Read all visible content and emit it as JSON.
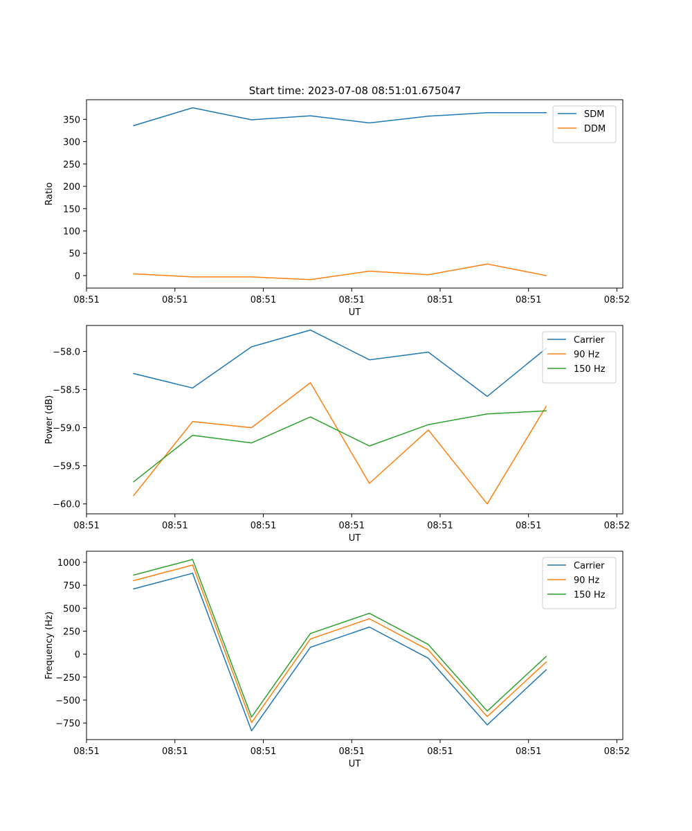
{
  "figure": {
    "title": "Start time: 2023-07-08 08:51:01.675047"
  },
  "chart_data": [
    {
      "type": "line",
      "title": "Start time: 2023-07-08 08:51:01.675047",
      "xlabel": "UT",
      "ylabel": "Ratio",
      "x": [
        1,
        2,
        3,
        4,
        5,
        6,
        7,
        8
      ],
      "xlim": [
        0.2,
        9.3
      ],
      "ylim": [
        -28,
        394
      ],
      "yticks": [
        0,
        50,
        100,
        150,
        200,
        250,
        300,
        350
      ],
      "xticks": [
        0.2,
        1.7,
        3.2,
        4.7,
        6.2,
        7.7,
        9.2
      ],
      "xtick_labels": [
        "08:51",
        "08:51",
        "08:51",
        "08:51",
        "08:51",
        "08:51",
        "08:52"
      ],
      "legend_loc": "upper right",
      "series": [
        {
          "name": "SDM",
          "color": "#1f77b4",
          "values": [
            336,
            376,
            349,
            358,
            342,
            357,
            365,
            365
          ]
        },
        {
          "name": "DDM",
          "color": "#ff7f0e",
          "values": [
            4,
            -3,
            -3,
            -9,
            10,
            2,
            26,
            0
          ]
        }
      ]
    },
    {
      "type": "line",
      "title": "",
      "xlabel": "UT",
      "ylabel": "Power (dB)",
      "x": [
        1,
        2,
        3,
        4,
        5,
        6,
        7,
        8
      ],
      "xlim": [
        0.2,
        9.3
      ],
      "ylim": [
        -60.13,
        -57.66
      ],
      "yticks": [
        -60.0,
        -59.5,
        -59.0,
        -58.5,
        -58.0
      ],
      "ytick_labels": [
        "−60.0",
        "−59.5",
        "−59.0",
        "−58.5",
        "−58.0"
      ],
      "xticks": [
        0.2,
        1.7,
        3.2,
        4.7,
        6.2,
        7.7,
        9.2
      ],
      "xtick_labels": [
        "08:51",
        "08:51",
        "08:51",
        "08:51",
        "08:51",
        "08:51",
        "08:52"
      ],
      "legend_loc": "upper right",
      "series": [
        {
          "name": "Carrier",
          "color": "#1f77b4",
          "values": [
            -58.29,
            -58.48,
            -57.94,
            -57.72,
            -58.11,
            -58.01,
            -58.59,
            -57.96
          ]
        },
        {
          "name": "90 Hz",
          "color": "#ff7f0e",
          "values": [
            -59.89,
            -58.92,
            -59.0,
            -58.41,
            -59.73,
            -59.03,
            -60.0,
            -58.72
          ]
        },
        {
          "name": "150 Hz",
          "color": "#2ca02c",
          "values": [
            -59.71,
            -59.1,
            -59.2,
            -58.86,
            -59.24,
            -58.96,
            -58.82,
            -58.78
          ]
        }
      ]
    },
    {
      "type": "line",
      "title": "",
      "xlabel": "UT",
      "ylabel": "Frequency (Hz)",
      "x": [
        1,
        2,
        3,
        4,
        5,
        6,
        7,
        8
      ],
      "xlim": [
        0.2,
        9.3
      ],
      "ylim": [
        -930,
        1120
      ],
      "yticks": [
        -750,
        -500,
        -250,
        0,
        250,
        500,
        750,
        1000
      ],
      "ytick_labels": [
        "−750",
        "−500",
        "−250",
        "0",
        "250",
        "500",
        "750",
        "1000"
      ],
      "xticks": [
        0.2,
        1.7,
        3.2,
        4.7,
        6.2,
        7.7,
        9.2
      ],
      "xtick_labels": [
        "08:51",
        "08:51",
        "08:51",
        "08:51",
        "08:51",
        "08:51",
        "08:52"
      ],
      "legend_loc": "upper right",
      "series": [
        {
          "name": "Carrier",
          "color": "#1f77b4",
          "values": [
            710,
            880,
            -835,
            75,
            295,
            -45,
            -770,
            -170
          ]
        },
        {
          "name": "90 Hz",
          "color": "#ff7f0e",
          "values": [
            800,
            970,
            -745,
            165,
            385,
            45,
            -680,
            -85
          ]
        },
        {
          "name": "150 Hz",
          "color": "#2ca02c",
          "values": [
            860,
            1030,
            -685,
            225,
            445,
            105,
            -620,
            -25
          ]
        }
      ]
    }
  ]
}
